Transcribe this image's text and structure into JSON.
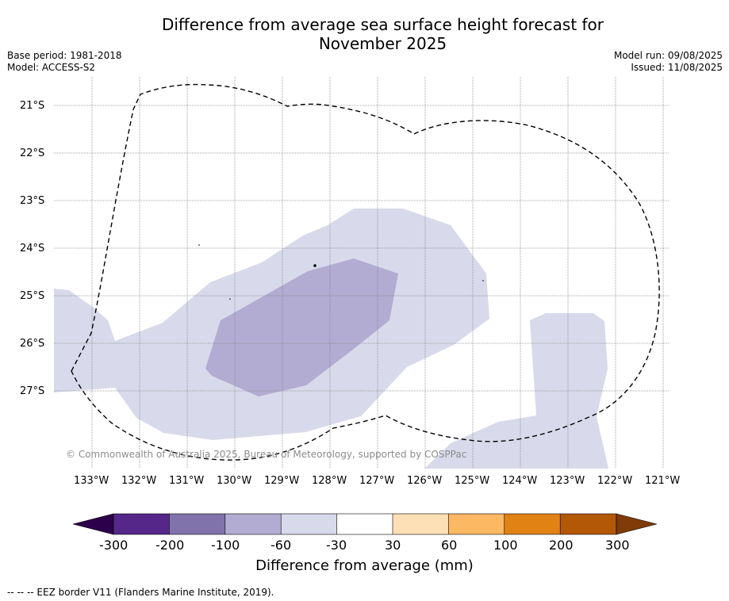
{
  "title_line1": "Difference from average sea surface height forecast for",
  "title_line2": "November 2025",
  "meta_left": {
    "base_period": "Base period: 1981-2018",
    "model": "Model: ACCESS-S2"
  },
  "meta_right": {
    "model_run": "Model run: 09/08/2025",
    "issued": "Issued: 11/08/2025"
  },
  "map": {
    "lat_labels": [
      "21°S",
      "22°S",
      "23°S",
      "24°S",
      "25°S",
      "26°S",
      "27°S"
    ],
    "lon_labels": [
      "133°W",
      "132°W",
      "131°W",
      "130°W",
      "129°W",
      "128°W",
      "127°W",
      "126°W",
      "125°W",
      "124°W",
      "123°W",
      "122°W",
      "121°W"
    ],
    "credit": "© Commonwealth of Australia 2025, Bureau of Meteorology, supported by COSPPac",
    "eez_style": "dashed black"
  },
  "colorbar": {
    "ticks": [
      "-300",
      "-200",
      "-100",
      "-60",
      "-30",
      "30",
      "60",
      "100",
      "200",
      "300"
    ],
    "colors": [
      "#2d004b",
      "#542788",
      "#8073ac",
      "#b2abd2",
      "#d8daeb",
      "#ffffff",
      "#fee0b6",
      "#fdb863",
      "#e08214",
      "#b35806",
      "#7f3b08"
    ],
    "label": "Difference from average (mm)"
  },
  "footer": "--  --  -- EEZ border V11 (Flanders Marine Institute, 2019)."
}
